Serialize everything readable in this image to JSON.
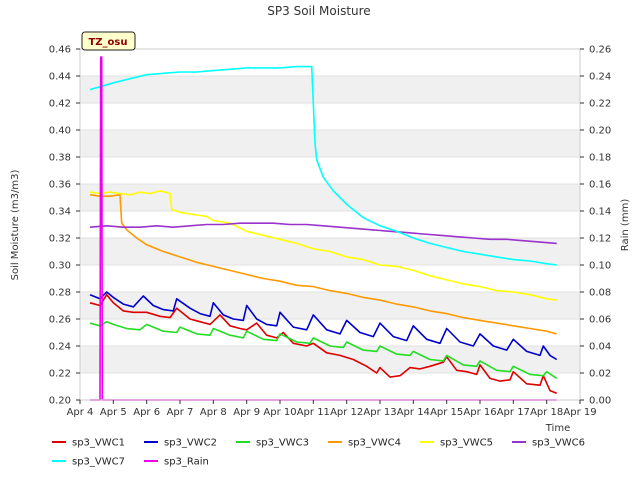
{
  "chart_data": {
    "type": "line",
    "title": "SP3 Soil Moisture",
    "badge": "TZ_osu",
    "xlabel": "Time",
    "ylabel": "Soil Moisture (m3/m3)",
    "y2label": "Rain (mm)",
    "xlim": [
      4,
      19
    ],
    "ylim": [
      0.2,
      0.46
    ],
    "y2lim": [
      0.0,
      0.26
    ],
    "xticks": [
      4,
      5,
      6,
      7,
      8,
      9,
      10,
      11,
      12,
      13,
      14,
      15,
      16,
      17,
      18,
      19
    ],
    "xtick_labels": [
      "Apr 4",
      "Apr 5",
      "Apr 6",
      "Apr 7",
      "Apr 8",
      "Apr 9",
      "Apr 10",
      "Apr 11",
      "Apr 12",
      "Apr 13",
      "Apr 14",
      "Apr 15",
      "Apr 16",
      "Apr 17",
      "Apr 18",
      "Apr 19"
    ],
    "yticks": [
      "0.20",
      "0.22",
      "0.24",
      "0.26",
      "0.28",
      "0.30",
      "0.32",
      "0.34",
      "0.36",
      "0.38",
      "0.40",
      "0.42",
      "0.44",
      "0.46"
    ],
    "y2ticks": [
      "0.00",
      "0.02",
      "0.04",
      "0.06",
      "0.08",
      "0.10",
      "0.12",
      "0.14",
      "0.16",
      "0.18",
      "0.20",
      "0.22",
      "0.24",
      "0.26"
    ],
    "grid": true,
    "legend_position": "bottom",
    "series": [
      {
        "name": "sp3_VWC1",
        "color": "#dd0000",
        "axis": "left",
        "x": [
          4.3,
          4.6,
          4.8,
          5.0,
          5.3,
          5.6,
          6.0,
          6.4,
          6.7,
          6.9,
          7.3,
          7.6,
          7.9,
          8.2,
          8.5,
          8.8,
          9.0,
          9.3,
          9.6,
          9.9,
          10.1,
          10.4,
          10.8,
          11.0,
          11.4,
          11.8,
          12.2,
          12.6,
          12.9,
          13.0,
          13.3,
          13.6,
          13.9,
          14.2,
          14.5,
          14.9,
          15.0,
          15.3,
          15.6,
          15.9,
          16.0,
          16.3,
          16.6,
          16.9,
          17.0,
          17.4,
          17.8,
          17.9,
          18.1,
          18.3
        ],
        "y": [
          0.272,
          0.27,
          0.278,
          0.272,
          0.266,
          0.265,
          0.265,
          0.262,
          0.261,
          0.268,
          0.26,
          0.258,
          0.256,
          0.263,
          0.255,
          0.253,
          0.252,
          0.257,
          0.248,
          0.246,
          0.25,
          0.242,
          0.24,
          0.242,
          0.235,
          0.233,
          0.23,
          0.225,
          0.22,
          0.224,
          0.217,
          0.218,
          0.224,
          0.223,
          0.225,
          0.228,
          0.232,
          0.222,
          0.221,
          0.219,
          0.226,
          0.216,
          0.214,
          0.215,
          0.221,
          0.212,
          0.211,
          0.218,
          0.207,
          0.205
        ]
      },
      {
        "name": "sp3_VWC2",
        "color": "#0000cc",
        "axis": "left",
        "x": [
          4.3,
          4.6,
          4.8,
          5.0,
          5.3,
          5.6,
          5.9,
          6.2,
          6.5,
          6.8,
          6.9,
          7.3,
          7.6,
          7.9,
          8.0,
          8.3,
          8.6,
          8.9,
          9.0,
          9.3,
          9.6,
          9.9,
          10.0,
          10.4,
          10.8,
          11.0,
          11.4,
          11.8,
          12.0,
          12.4,
          12.8,
          13.0,
          13.4,
          13.8,
          14.0,
          14.4,
          14.8,
          15.0,
          15.4,
          15.8,
          16.0,
          16.4,
          16.8,
          17.0,
          17.4,
          17.8,
          17.9,
          18.1,
          18.3
        ],
        "y": [
          0.278,
          0.275,
          0.28,
          0.276,
          0.271,
          0.269,
          0.277,
          0.27,
          0.267,
          0.266,
          0.275,
          0.268,
          0.264,
          0.262,
          0.272,
          0.263,
          0.26,
          0.259,
          0.27,
          0.26,
          0.256,
          0.255,
          0.265,
          0.254,
          0.252,
          0.263,
          0.252,
          0.249,
          0.259,
          0.25,
          0.247,
          0.257,
          0.247,
          0.244,
          0.255,
          0.245,
          0.242,
          0.253,
          0.243,
          0.24,
          0.249,
          0.24,
          0.237,
          0.245,
          0.236,
          0.233,
          0.24,
          0.233,
          0.23
        ]
      },
      {
        "name": "sp3_VWC3",
        "color": "#22dd22",
        "axis": "left",
        "x": [
          4.3,
          4.6,
          4.8,
          5.0,
          5.4,
          5.8,
          6.0,
          6.5,
          6.9,
          7.0,
          7.5,
          7.9,
          8.0,
          8.5,
          8.9,
          9.0,
          9.5,
          9.9,
          10.0,
          10.5,
          10.9,
          11.0,
          11.5,
          11.9,
          12.0,
          12.5,
          12.9,
          13.0,
          13.5,
          13.9,
          14.0,
          14.5,
          14.9,
          15.0,
          15.5,
          15.9,
          16.0,
          16.5,
          16.9,
          17.0,
          17.5,
          17.9,
          18.0,
          18.3
        ],
        "y": [
          0.257,
          0.255,
          0.258,
          0.256,
          0.253,
          0.252,
          0.256,
          0.251,
          0.25,
          0.254,
          0.249,
          0.248,
          0.253,
          0.248,
          0.246,
          0.251,
          0.245,
          0.244,
          0.249,
          0.243,
          0.242,
          0.246,
          0.24,
          0.239,
          0.243,
          0.237,
          0.236,
          0.24,
          0.234,
          0.233,
          0.236,
          0.23,
          0.229,
          0.233,
          0.226,
          0.225,
          0.229,
          0.222,
          0.221,
          0.225,
          0.219,
          0.218,
          0.221,
          0.216
        ]
      },
      {
        "name": "sp3_VWC4",
        "color": "#ff9900",
        "axis": "left",
        "x": [
          4.3,
          4.6,
          4.9,
          5.2,
          5.25,
          5.4,
          5.7,
          6.0,
          6.5,
          7.0,
          7.5,
          8.0,
          8.5,
          9.0,
          9.5,
          10.0,
          10.5,
          11.0,
          11.5,
          12.0,
          12.5,
          13.0,
          13.5,
          14.0,
          14.5,
          15.0,
          15.5,
          16.0,
          16.5,
          17.0,
          17.5,
          18.0,
          18.3
        ],
        "y": [
          0.352,
          0.351,
          0.351,
          0.352,
          0.331,
          0.326,
          0.32,
          0.315,
          0.31,
          0.306,
          0.302,
          0.299,
          0.296,
          0.293,
          0.29,
          0.288,
          0.285,
          0.284,
          0.281,
          0.279,
          0.276,
          0.274,
          0.271,
          0.269,
          0.266,
          0.264,
          0.261,
          0.259,
          0.257,
          0.255,
          0.253,
          0.251,
          0.249
        ]
      },
      {
        "name": "sp3_VWC5",
        "color": "#ffff00",
        "axis": "left",
        "x": [
          4.3,
          4.6,
          4.9,
          5.2,
          5.5,
          5.8,
          6.1,
          6.4,
          6.7,
          6.75,
          7.0,
          7.5,
          7.8,
          8.0,
          8.5,
          9.0,
          9.5,
          10.0,
          10.5,
          11.0,
          11.5,
          12.0,
          12.5,
          13.0,
          13.5,
          14.0,
          14.5,
          15.0,
          15.5,
          16.0,
          16.5,
          17.0,
          17.5,
          18.0,
          18.3
        ],
        "y": [
          0.354,
          0.353,
          0.354,
          0.353,
          0.352,
          0.354,
          0.353,
          0.355,
          0.353,
          0.341,
          0.339,
          0.337,
          0.336,
          0.333,
          0.331,
          0.325,
          0.322,
          0.319,
          0.316,
          0.312,
          0.31,
          0.306,
          0.304,
          0.3,
          0.299,
          0.296,
          0.292,
          0.289,
          0.286,
          0.284,
          0.281,
          0.28,
          0.278,
          0.275,
          0.274
        ]
      },
      {
        "name": "sp3_VWC6",
        "color": "#9933cc",
        "axis": "left",
        "x": [
          4.3,
          4.8,
          5.3,
          5.8,
          6.3,
          6.8,
          7.3,
          7.8,
          8.3,
          8.8,
          9.3,
          9.8,
          10.3,
          10.8,
          11.3,
          11.8,
          12.3,
          12.8,
          13.3,
          13.8,
          14.3,
          14.8,
          15.3,
          15.8,
          16.3,
          16.8,
          17.3,
          17.8,
          18.3
        ],
        "y": [
          0.328,
          0.329,
          0.328,
          0.328,
          0.329,
          0.328,
          0.329,
          0.33,
          0.33,
          0.331,
          0.331,
          0.331,
          0.33,
          0.33,
          0.329,
          0.328,
          0.327,
          0.326,
          0.325,
          0.324,
          0.323,
          0.322,
          0.321,
          0.32,
          0.319,
          0.319,
          0.318,
          0.317,
          0.316
        ]
      },
      {
        "name": "sp3_VWC7",
        "color": "#00ffff",
        "axis": "left",
        "x": [
          4.3,
          4.6,
          5.0,
          5.5,
          6.0,
          6.5,
          7.0,
          7.5,
          8.0,
          8.5,
          9.0,
          9.5,
          10.0,
          10.5,
          10.95,
          11.0,
          11.05,
          11.1,
          11.3,
          11.6,
          12.0,
          12.5,
          13.0,
          13.5,
          14.0,
          14.5,
          15.0,
          15.5,
          16.0,
          16.5,
          17.0,
          17.5,
          18.0,
          18.3
        ],
        "y": [
          0.43,
          0.432,
          0.435,
          0.438,
          0.441,
          0.442,
          0.443,
          0.443,
          0.444,
          0.445,
          0.446,
          0.446,
          0.446,
          0.447,
          0.447,
          0.42,
          0.39,
          0.378,
          0.365,
          0.355,
          0.345,
          0.335,
          0.329,
          0.325,
          0.32,
          0.316,
          0.313,
          0.31,
          0.308,
          0.306,
          0.304,
          0.303,
          0.301,
          0.3
        ]
      },
      {
        "name": "sp3_Rain",
        "color": "#ee00ee",
        "axis": "right",
        "x": [
          4.3,
          4.6,
          4.62,
          4.65,
          4.67,
          5.0,
          10.0,
          15.0,
          18.3
        ],
        "y": [
          0.0,
          0.0,
          0.254,
          0.254,
          0.0,
          0.0,
          0.0,
          0.0,
          0.0
        ]
      }
    ]
  }
}
